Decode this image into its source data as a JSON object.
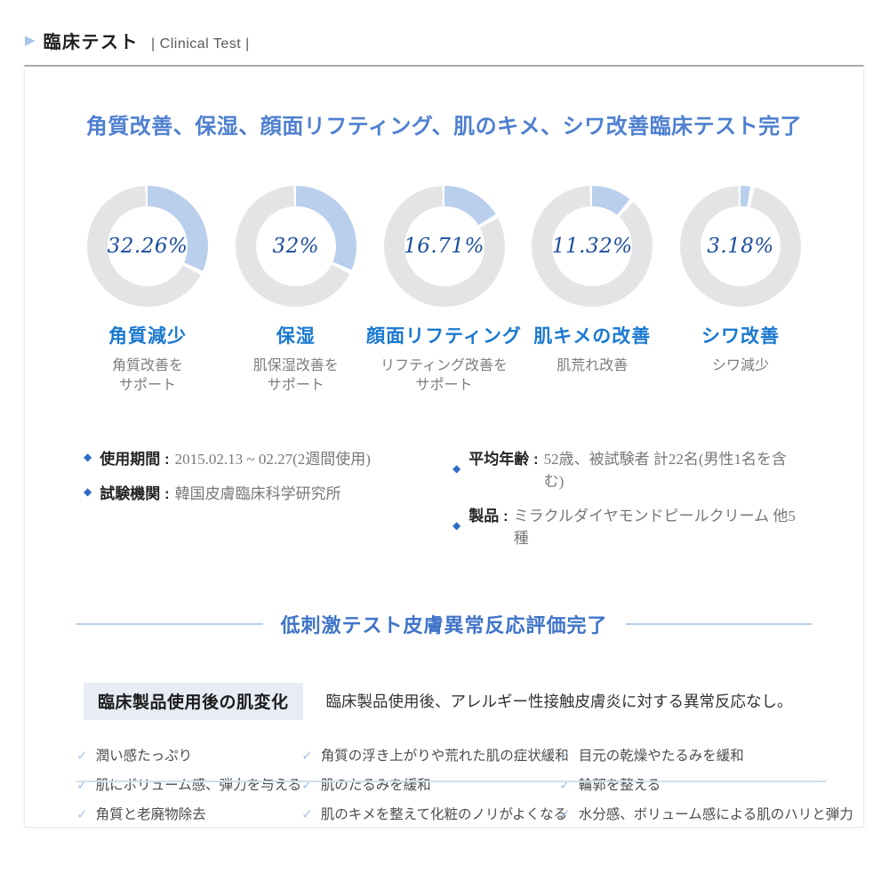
{
  "header": {
    "title_jp": "臨床テスト",
    "title_en": "| Clinical Test |"
  },
  "main": {
    "title": "角質改善、保湿、顔面リフティング、肌のキメ、シワ改善臨床テスト完了"
  },
  "chart_data": {
    "type": "pie",
    "variant": "donut",
    "start_angle": "top, clockwise",
    "items": [
      {
        "label": "角質減少",
        "sublabel": "角質改善を\nサポート",
        "value": 32.26,
        "percent": "32.26%"
      },
      {
        "label": "保湿",
        "sublabel": "肌保湿改善を\nサポート",
        "value": 32,
        "percent": "32%"
      },
      {
        "label": "顔面リフティング",
        "sublabel": "リフティング改善を\nサポート",
        "value": 16.71,
        "percent": "16.71%"
      },
      {
        "label": "肌キメの改善",
        "sublabel": "肌荒れ改善",
        "value": 11.32,
        "percent": "11.32%"
      },
      {
        "label": "シワ改善",
        "sublabel": "シワ減少",
        "value": 3.18,
        "percent": "3.18%"
      }
    ]
  },
  "details": [
    {
      "label": "使用期間 :",
      "value": "2015.02.13 ~ 02.27(2週間使用)"
    },
    {
      "label": "試験機関 :",
      "value": "韓国皮膚臨床科学研究所"
    },
    {
      "label": "平均年齢 :",
      "value": "52歳、被試験者 計22名(男性1名を含む)"
    },
    {
      "label": "製品 :",
      "value": "ミラクルダイヤモンドピールクリーム 他5種"
    }
  ],
  "section2": {
    "title": "低刺激テスト皮膚異常反応評価完了",
    "box_label": "臨床製品使用後の肌変化",
    "box_text": "臨床製品使用後、アレルギー性接触皮膚炎に対する異常反応なし。"
  },
  "checklist": [
    [
      "潤い感たっぷり",
      "肌にボリューム感、弾力を与える",
      "角質と老廃物除去"
    ],
    [
      "角質の浮き上がりや荒れた肌の症状緩和",
      "肌のたるみを緩和",
      "肌のキメを整えて化粧のノリがよくなる"
    ],
    [
      "目元の乾燥やたるみを緩和",
      "輪郭を整える",
      "水分感、ボリューム感による肌のハリと弾力"
    ]
  ],
  "icons": {
    "header_arrow": "▶",
    "diamond": "◆",
    "check": "✓"
  },
  "colors": {
    "donut_fill": "#b9cfec",
    "donut_track": "#e4e4e7",
    "title_blue": "#4f80d0",
    "label_blue": "#1a79d0",
    "percent_navy": "#1c4d9c",
    "section_line_blue": "#b7cde9",
    "box_bg": "#e8ecf5",
    "check_blue": "#a7c3e6",
    "diamond_blue": "#2e6cc4",
    "bottom_line": "#cfdfea"
  }
}
